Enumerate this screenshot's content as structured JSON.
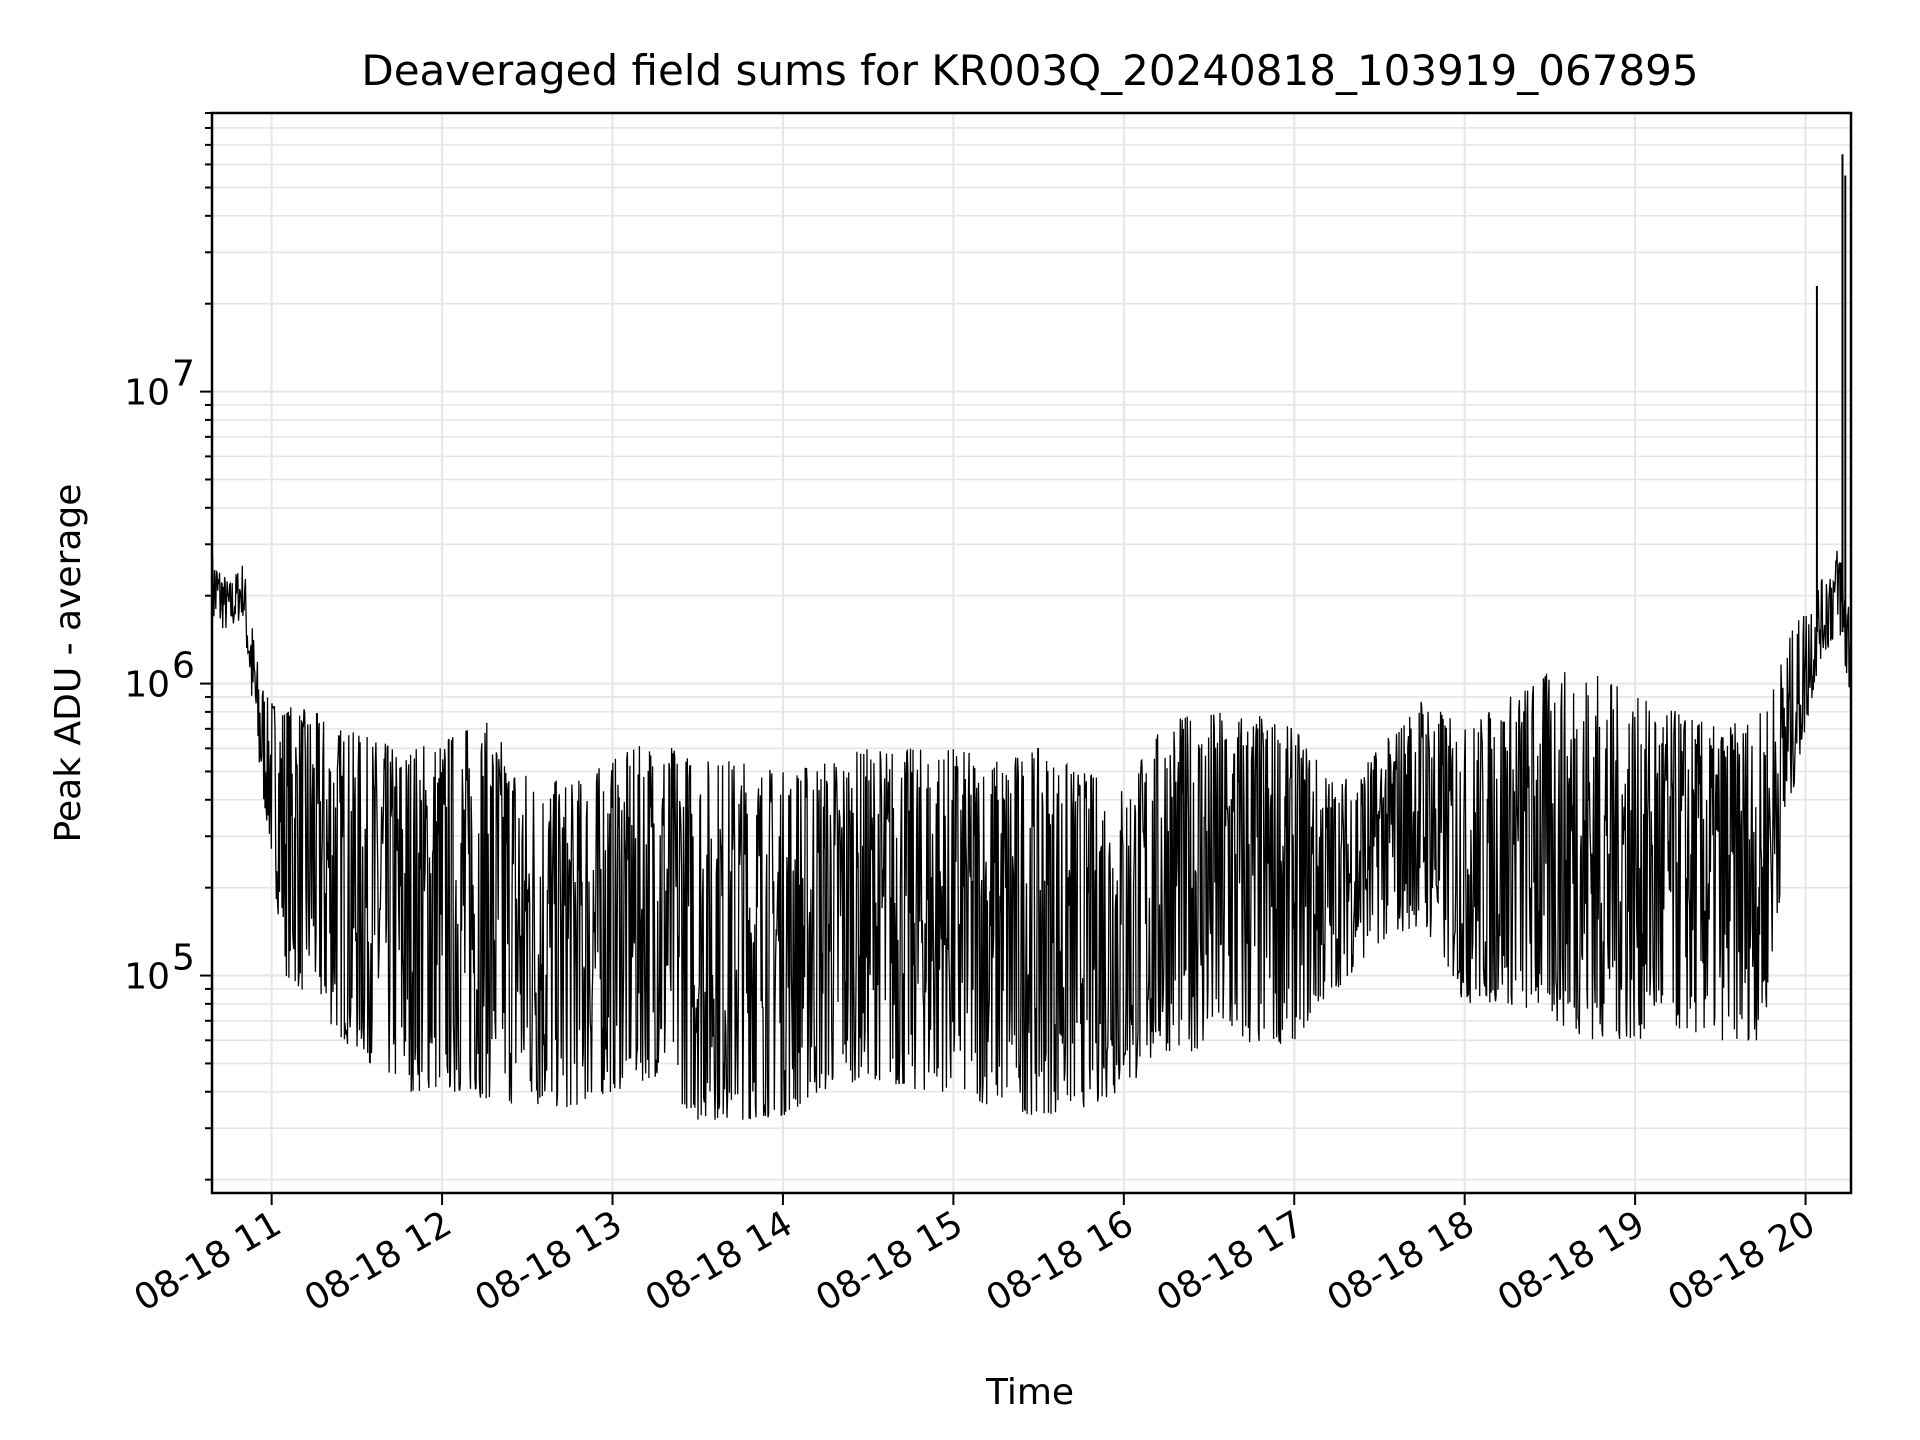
{
  "chart_data": {
    "type": "line",
    "title": "Deaveraged field sums for KR003Q_20240818_103919_067895",
    "xlabel": "Time",
    "ylabel": "Peak ADU - average",
    "y_scale": "log",
    "ylim": [
      18000,
      90000000
    ],
    "xlim": [
      "08-18 10:39",
      "08-18 20:16"
    ],
    "x_tick_labels": [
      "08-18 11",
      "08-18 12",
      "08-18 13",
      "08-18 14",
      "08-18 15",
      "08-18 16",
      "08-18 17",
      "08-18 18",
      "08-18 19",
      "08-18 20"
    ],
    "y_tick_labels": [
      {
        "base": "10",
        "exp": "5"
      },
      {
        "base": "10",
        "exp": "6"
      },
      {
        "base": "10",
        "exp": "7"
      }
    ],
    "grid": true,
    "line_color": "#000000",
    "grid_color": "#e6e6e6",
    "series": [
      {
        "x": [
          "08-18 10:39",
          "08-18 10:45",
          "08-18 10:50",
          "08-18 10:55",
          "08-18 10:58",
          "08-18 11:05",
          "08-18 11:15",
          "08-18 11:25",
          "08-18 11:35",
          "08-18 11:45",
          "08-18 12:00",
          "08-18 12:15",
          "08-18 12:30",
          "08-18 12:45",
          "08-18 13:00",
          "08-18 13:15",
          "08-18 13:30",
          "08-18 13:45",
          "08-18 14:00",
          "08-18 14:15",
          "08-18 14:30",
          "08-18 14:45",
          "08-18 15:00",
          "08-18 15:15",
          "08-18 15:30",
          "08-18 15:45",
          "08-18 16:00",
          "08-18 16:15",
          "08-18 16:30",
          "08-18 16:45",
          "08-18 17:00",
          "08-18 17:15",
          "08-18 17:30",
          "08-18 17:45",
          "08-18 18:00",
          "08-18 18:15",
          "08-18 18:30",
          "08-18 18:45",
          "08-18 19:00",
          "08-18 19:15",
          "08-18 19:30",
          "08-18 19:45",
          "08-18 19:55",
          "08-18 20:05",
          "08-18 20:12",
          "08-18 20:15"
        ],
        "high": [
          2800000,
          2200000,
          2600000,
          1200000,
          900000,
          850000,
          800000,
          700000,
          650000,
          600000,
          650000,
          750000,
          500000,
          450000,
          550000,
          650000,
          550000,
          550000,
          500000,
          550000,
          600000,
          600000,
          600000,
          550000,
          600000,
          500000,
          450000,
          750000,
          800000,
          800000,
          700000,
          450000,
          600000,
          900000,
          700000,
          900000,
          1100000,
          1100000,
          900000,
          800000,
          700000,
          800000,
          1500000,
          2200000,
          3000000,
          2000000
        ],
        "low": [
          1600000,
          1500000,
          1700000,
          500000,
          350000,
          100000,
          80000,
          60000,
          50000,
          40000,
          40000,
          38000,
          35000,
          35000,
          40000,
          45000,
          32000,
          32000,
          33000,
          40000,
          45000,
          40000,
          40000,
          35000,
          33000,
          35000,
          40000,
          55000,
          55000,
          55000,
          60000,
          90000,
          130000,
          150000,
          80000,
          80000,
          70000,
          60000,
          60000,
          65000,
          60000,
          60000,
          400000,
          1200000,
          1500000,
          900000
        ]
      }
    ],
    "spikes": [
      {
        "x": "08-18 20:04",
        "value": 23000000
      },
      {
        "x": "08-18 20:13",
        "value": 65000000
      },
      {
        "x": "08-18 20:14",
        "value": 55000000
      }
    ]
  }
}
